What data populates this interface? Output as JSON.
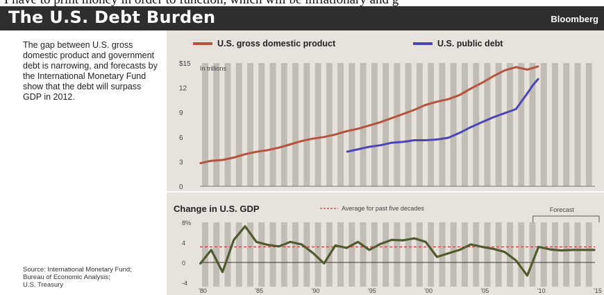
{
  "top_fragment": "I have to print money in order to function, which will be inflationary and g",
  "header": {
    "title": "The U.S. Debt Burden",
    "brand": "Bloomberg"
  },
  "description": "The gap between U.S. gross domestic product and government debt is narrowing, and forecasts by the International Monetary Fund show that the debt will surpass GDP in 2012.",
  "source_lines": [
    "Source: International Monetary Fund;",
    "Bureau of Economic Analysis;",
    "U.S. Treasury"
  ],
  "colors": {
    "gdp": "#b5533e",
    "debt": "#4a46b8",
    "growth": "#4f5a2f",
    "average": "#cc3b3b",
    "stripe": "#c2bdb4",
    "band": "#e7e3dc"
  },
  "chart_data": [
    {
      "type": "line",
      "ylabel": "In trillions",
      "ylim": [
        0,
        15
      ],
      "xlim": [
        1980,
        2015
      ],
      "y_ticks": [
        "$15",
        "12",
        "9",
        "6",
        "3",
        "0"
      ],
      "y_tick_values": [
        15,
        12,
        9,
        6,
        3,
        0
      ],
      "legend_position": "top",
      "grid": false,
      "series": [
        {
          "name": "U.S. gross domestic product",
          "x": [
            1980,
            1981,
            1982,
            1983,
            1984,
            1985,
            1986,
            1987,
            1988,
            1989,
            1990,
            1991,
            1992,
            1993,
            1994,
            1995,
            1996,
            1997,
            1998,
            1999,
            2000,
            2001,
            2002,
            2003,
            2004,
            2005,
            2006,
            2007,
            2008,
            2009,
            2010
          ],
          "y": [
            2.8,
            3.1,
            3.2,
            3.5,
            3.9,
            4.2,
            4.4,
            4.7,
            5.1,
            5.5,
            5.8,
            6.0,
            6.3,
            6.7,
            7.0,
            7.4,
            7.8,
            8.3,
            8.8,
            9.3,
            9.9,
            10.3,
            10.6,
            11.1,
            11.9,
            12.6,
            13.4,
            14.1,
            14.5,
            14.2,
            14.6
          ]
        },
        {
          "name": "U.S. public debt",
          "x": [
            1993,
            1994,
            1995,
            1996,
            1997,
            1998,
            1999,
            2000,
            2001,
            2002,
            2003,
            2004,
            2005,
            2006,
            2007,
            2008,
            2009,
            2009.5,
            2010
          ],
          "y": [
            4.2,
            4.5,
            4.8,
            5.0,
            5.3,
            5.4,
            5.6,
            5.6,
            5.7,
            5.9,
            6.5,
            7.2,
            7.8,
            8.4,
            8.9,
            9.4,
            11.3,
            12.3,
            13.1
          ]
        }
      ]
    },
    {
      "type": "line",
      "title": "Change in U.S. GDP",
      "ylim": [
        -4,
        8
      ],
      "xlim": [
        1980,
        2015
      ],
      "y_ticks": [
        "8%",
        "4",
        "0",
        "-4"
      ],
      "y_tick_values": [
        8,
        4,
        0,
        -4
      ],
      "x_ticks": [
        "'80",
        "'85",
        "'90",
        "'95",
        "'00",
        "'05",
        "'10",
        "'15"
      ],
      "x_tick_values": [
        1980,
        1985,
        1990,
        1995,
        2000,
        2005,
        2010,
        2015
      ],
      "average": {
        "label": "Average for past five decades",
        "value": 3.1
      },
      "forecast": {
        "label": "Forecast",
        "start": 2010,
        "end": 2015
      },
      "series": [
        {
          "name": "",
          "x": [
            1980,
            1981,
            1982,
            1983,
            1984,
            1985,
            1986,
            1987,
            1988,
            1989,
            1990,
            1991,
            1992,
            1993,
            1994,
            1995,
            1996,
            1997,
            1998,
            1999,
            2000,
            2001,
            2002,
            2003,
            2004,
            2005,
            2006,
            2007,
            2008,
            2009,
            2010,
            2011,
            2012,
            2013,
            2014,
            2015
          ],
          "y": [
            -0.3,
            2.5,
            -1.9,
            4.5,
            7.2,
            4.1,
            3.5,
            3.2,
            4.1,
            3.6,
            1.9,
            -0.2,
            3.4,
            2.9,
            4.1,
            2.5,
            3.7,
            4.5,
            4.4,
            4.8,
            4.1,
            1.1,
            1.8,
            2.5,
            3.6,
            3.1,
            2.7,
            2.1,
            0.4,
            -2.6,
            3.1,
            2.6,
            2.4,
            2.5,
            2.5,
            2.5
          ]
        }
      ]
    }
  ]
}
